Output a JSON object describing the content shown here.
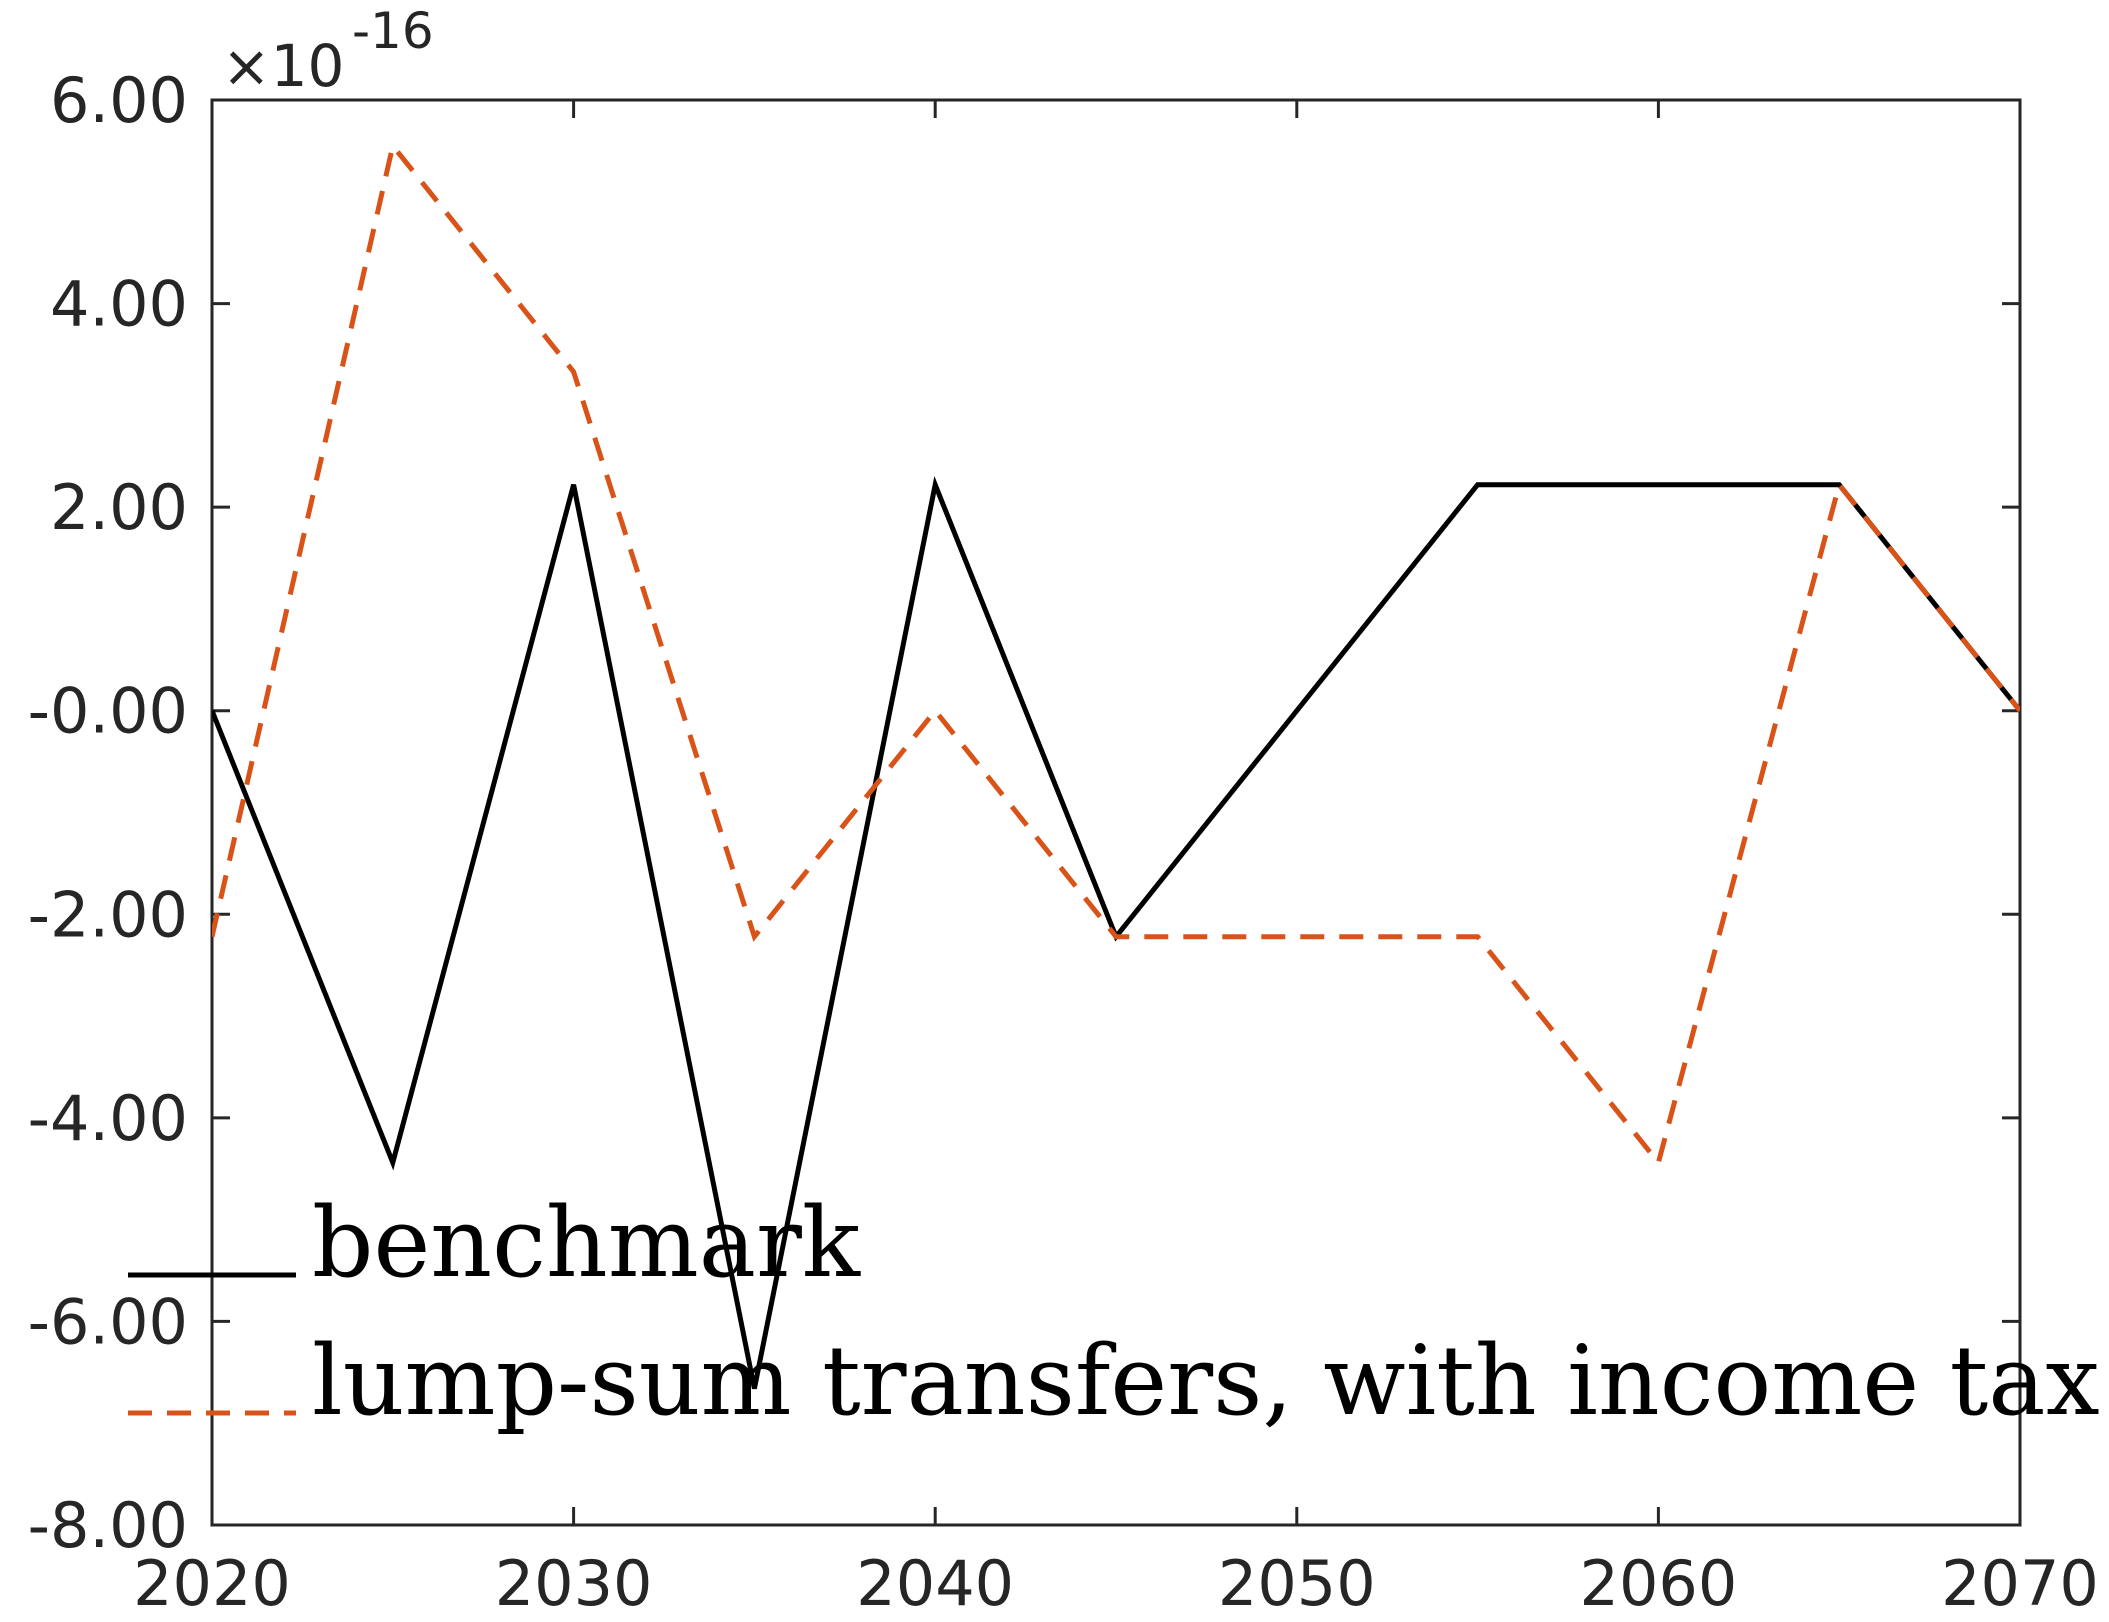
{
  "chart_data": {
    "type": "line",
    "title": "",
    "xlabel": "",
    "ylabel": "",
    "x": [
      2020,
      2025,
      2030,
      2035,
      2040,
      2045,
      2050,
      2055,
      2060,
      2065,
      2070
    ],
    "xlim": [
      2020,
      2070
    ],
    "ylim": [
      -8,
      6
    ],
    "x_ticks": [
      2020,
      2030,
      2040,
      2050,
      2060,
      2070
    ],
    "x_tick_labels": [
      "2020",
      "2030",
      "2040",
      "2050",
      "2060",
      "2070"
    ],
    "y_ticks": [
      6,
      4,
      2,
      0,
      -2,
      -4,
      -6,
      -8
    ],
    "y_tick_labels": [
      "6.00",
      "4.00",
      "2.00",
      "-0.00",
      "-2.00",
      "-4.00",
      "-6.00",
      "-8.00"
    ],
    "y_exponent": {
      "multiplier": "×10",
      "power": "-16"
    },
    "grid": false,
    "legend_position": "bottom-left",
    "series": [
      {
        "name": "benchmark",
        "color": "#000000",
        "style": "solid",
        "values": [
          0,
          -4.44,
          2.22,
          -6.66,
          2.22,
          -2.22,
          0,
          2.22,
          2.22,
          2.22,
          0
        ]
      },
      {
        "name": "lump-sum transfers, with income tax",
        "color": "#D95319",
        "style": "dashed",
        "values": [
          -2.22,
          5.55,
          3.33,
          -2.22,
          0,
          -2.22,
          -2.22,
          -2.22,
          -4.44,
          2.22,
          0
        ]
      }
    ]
  }
}
